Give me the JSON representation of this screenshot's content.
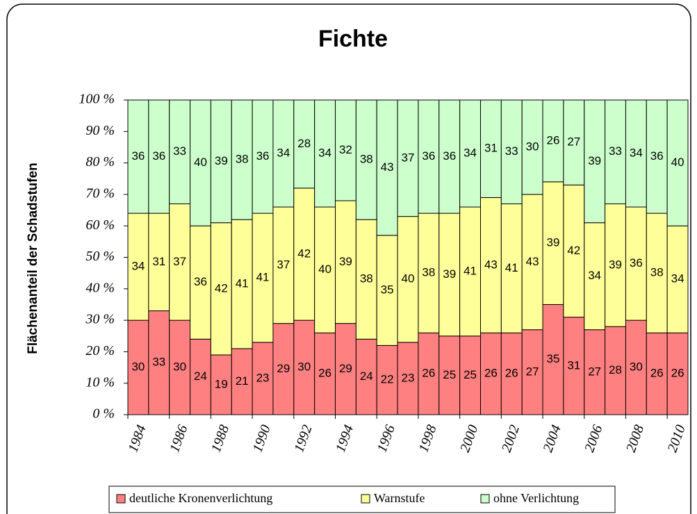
{
  "chart_data": {
    "type": "stacked-bar",
    "title": "Fichte",
    "y_label": "Flächenanteil der Schadstufen",
    "categories": [
      "1984",
      null,
      "1986",
      null,
      "1988",
      null,
      "1990",
      null,
      "1992",
      null,
      "1994",
      null,
      "1996",
      null,
      "1998",
      null,
      "2000",
      null,
      "2002",
      null,
      "2004",
      null,
      "2006",
      null,
      "2008",
      null,
      "2010"
    ],
    "series": [
      {
        "name": "deutliche Kronenverlichtung",
        "color": "#ff8080",
        "values": [
          30,
          33,
          30,
          24,
          19,
          21,
          23,
          29,
          30,
          26,
          29,
          24,
          22,
          23,
          26,
          25,
          25,
          26,
          26,
          27,
          35,
          31,
          27,
          28,
          30,
          26,
          26
        ]
      },
      {
        "name": "Warnstufe",
        "color": "#ffff99",
        "values": [
          34,
          31,
          37,
          36,
          42,
          41,
          41,
          37,
          42,
          40,
          39,
          38,
          35,
          40,
          38,
          39,
          41,
          43,
          41,
          43,
          39,
          42,
          34,
          39,
          36,
          38,
          34
        ]
      },
      {
        "name": "ohne Verlichtung",
        "color": "#ccffcc",
        "values": [
          36,
          36,
          33,
          40,
          39,
          38,
          36,
          34,
          28,
          34,
          32,
          38,
          43,
          37,
          36,
          36,
          34,
          31,
          33,
          30,
          26,
          27,
          39,
          33,
          34,
          36,
          40
        ]
      }
    ],
    "ylim": [
      0,
      100
    ],
    "yticks": [
      {
        "value": 0,
        "label": "0 %"
      },
      {
        "value": 10,
        "label": "10 %"
      },
      {
        "value": 20,
        "label": "20 %"
      },
      {
        "value": 30,
        "label": "30 %"
      },
      {
        "value": 40,
        "label": "40 %"
      },
      {
        "value": 50,
        "label": "50 %"
      },
      {
        "value": 60,
        "label": "60 %"
      },
      {
        "value": 70,
        "label": "70 %"
      },
      {
        "value": 80,
        "label": "80 %"
      },
      {
        "value": 90,
        "label": "90 %"
      },
      {
        "value": 100,
        "label": "100 %"
      }
    ],
    "legend": "bottom"
  }
}
